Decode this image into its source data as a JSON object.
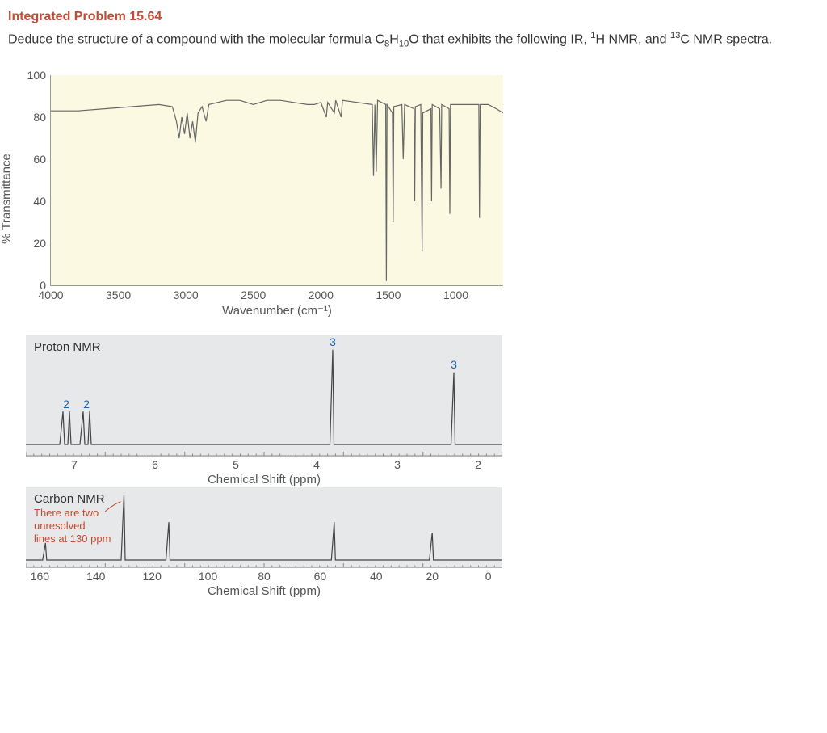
{
  "title": "Integrated Problem 15.64",
  "problem_html": "Deduce the structure of a compound with the molecular formula C<sub>8</sub>H<sub>10</sub>O that exhibits the following IR, <sup>1</sup>H NMR, and <sup>13</sup>C NMR spectra.",
  "colors": {
    "title": "#c24b33",
    "text": "#333333",
    "ir_bg": "#fbf9e2",
    "nmr_bg": "#e7e8ea",
    "nmr_int": "#1463b3",
    "nmr_note": "#c24b33",
    "axis": "#999999"
  },
  "ir": {
    "type": "ir_spectrum",
    "ylabel": "% Transmittance",
    "xlabel": "Wavenumber (cm⁻¹)",
    "xlim": [
      4000,
      650
    ],
    "ylim": [
      0,
      100
    ],
    "yticks": [
      0,
      20,
      40,
      60,
      80,
      100
    ],
    "xticks": [
      4000,
      3500,
      3000,
      2500,
      2000,
      1500,
      1000
    ],
    "plot_bg": "#fbf9e2",
    "line_color": "#666666",
    "line_width": 1.2,
    "points": [
      [
        4000,
        83
      ],
      [
        3800,
        83
      ],
      [
        3600,
        84
      ],
      [
        3400,
        85
      ],
      [
        3200,
        86
      ],
      [
        3100,
        85
      ],
      [
        3070,
        78
      ],
      [
        3050,
        70
      ],
      [
        3030,
        80
      ],
      [
        3010,
        72
      ],
      [
        2990,
        82
      ],
      [
        2970,
        70
      ],
      [
        2950,
        78
      ],
      [
        2930,
        68
      ],
      [
        2910,
        82
      ],
      [
        2880,
        85
      ],
      [
        2850,
        78
      ],
      [
        2830,
        86
      ],
      [
        2700,
        88
      ],
      [
        2600,
        88
      ],
      [
        2500,
        86
      ],
      [
        2400,
        88
      ],
      [
        2300,
        88
      ],
      [
        2200,
        87
      ],
      [
        2100,
        86
      ],
      [
        2050,
        86
      ],
      [
        2000,
        87
      ],
      [
        1960,
        80
      ],
      [
        1950,
        87
      ],
      [
        1900,
        82
      ],
      [
        1890,
        88
      ],
      [
        1850,
        80
      ],
      [
        1840,
        88
      ],
      [
        1620,
        86
      ],
      [
        1610,
        52
      ],
      [
        1600,
        86
      ],
      [
        1590,
        54
      ],
      [
        1580,
        88
      ],
      [
        1520,
        86
      ],
      [
        1515,
        2
      ],
      [
        1510,
        86
      ],
      [
        1470,
        82
      ],
      [
        1465,
        30
      ],
      [
        1460,
        85
      ],
      [
        1400,
        86
      ],
      [
        1390,
        60
      ],
      [
        1380,
        86
      ],
      [
        1310,
        84
      ],
      [
        1305,
        40
      ],
      [
        1300,
        85
      ],
      [
        1260,
        86
      ],
      [
        1250,
        16
      ],
      [
        1245,
        82
      ],
      [
        1185,
        84
      ],
      [
        1180,
        40
      ],
      [
        1175,
        86
      ],
      [
        1120,
        84
      ],
      [
        1110,
        46
      ],
      [
        1105,
        86
      ],
      [
        1050,
        84
      ],
      [
        1045,
        34
      ],
      [
        1040,
        86
      ],
      [
        960,
        86
      ],
      [
        830,
        86
      ],
      [
        825,
        32
      ],
      [
        820,
        86
      ],
      [
        760,
        86
      ],
      [
        700,
        84
      ],
      [
        650,
        82
      ]
    ]
  },
  "hnmr": {
    "type": "1h_nmr",
    "title": "Proton NMR",
    "xlabel": "Chemical Shift (ppm)",
    "xlim": [
      7.6,
      1.7
    ],
    "xticks": [
      7,
      6,
      5,
      4,
      3,
      2
    ],
    "bg": "#e7e8ea",
    "line_color": "#444444",
    "int_color": "#1463b3",
    "peaks": [
      {
        "ppm": 7.1,
        "height": 0.32,
        "mult": "d",
        "integration": "2"
      },
      {
        "ppm": 6.85,
        "height": 0.32,
        "mult": "d",
        "integration": "2"
      },
      {
        "ppm": 3.8,
        "height": 0.92,
        "mult": "s",
        "integration": "3"
      },
      {
        "ppm": 2.3,
        "height": 0.7,
        "mult": "s",
        "integration": "3"
      }
    ]
  },
  "cnmr": {
    "type": "13c_nmr",
    "title": "Carbon NMR",
    "note_lines": [
      "There are two",
      "unresolved",
      "lines at 130 ppm"
    ],
    "xlabel": "Chemical Shift (ppm)",
    "xlim": [
      165,
      -5
    ],
    "xticks": [
      160,
      140,
      120,
      100,
      80,
      60,
      40,
      20,
      0
    ],
    "bg": "#e7e8ea",
    "line_color": "#444444",
    "note_color": "#c24b33",
    "peaks": [
      {
        "ppm": 158,
        "height": 0.25
      },
      {
        "ppm": 130,
        "height": 0.95
      },
      {
        "ppm": 114,
        "height": 0.55
      },
      {
        "ppm": 55,
        "height": 0.55
      },
      {
        "ppm": 20,
        "height": 0.4
      }
    ]
  }
}
